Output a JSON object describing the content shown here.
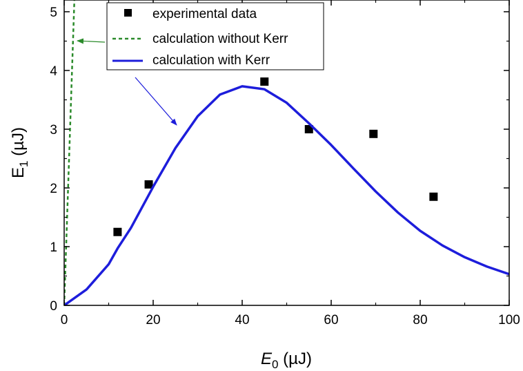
{
  "chart_data": {
    "type": "scatter",
    "xlabel": {
      "base": "E",
      "sub": "0",
      "unit": " (µJ)"
    },
    "ylabel": {
      "base": "E",
      "sub": "1",
      "unit": " (µJ)"
    },
    "xlim": [
      0,
      100
    ],
    "ylim": [
      0,
      5.2
    ],
    "xticks": [
      0,
      20,
      40,
      60,
      80,
      100
    ],
    "yticks": [
      0,
      1,
      2,
      3,
      4,
      5
    ],
    "xtick_labels": [
      "0",
      "20",
      "40",
      "60",
      "80",
      "100"
    ],
    "ytick_labels": [
      "0",
      "1",
      "2",
      "3",
      "4",
      "5"
    ],
    "grid": false,
    "legend_position": "top-center",
    "series": [
      {
        "name": "experimental data",
        "kind": "points",
        "color": "#000000",
        "x": [
          12,
          19,
          45,
          55,
          69.5,
          83
        ],
        "y": [
          1.25,
          2.06,
          3.81,
          3.0,
          2.92,
          1.85
        ]
      },
      {
        "name": "calculation without Kerr",
        "kind": "dashed-line",
        "color": "#2a8a2a",
        "x": [
          0,
          2.3
        ],
        "y": [
          0,
          5.2
        ]
      },
      {
        "name": "calculation with Kerr",
        "kind": "line",
        "color": "#1d1ddb",
        "x": [
          0,
          5,
          10,
          12,
          15,
          20,
          25,
          30,
          35,
          40,
          45,
          50,
          55,
          60,
          65,
          70,
          75,
          80,
          85,
          90,
          95,
          100
        ],
        "y": [
          0,
          0.27,
          0.7,
          0.97,
          1.32,
          2.02,
          2.68,
          3.22,
          3.59,
          3.73,
          3.68,
          3.45,
          3.1,
          2.73,
          2.33,
          1.94,
          1.58,
          1.27,
          1.02,
          0.82,
          0.66,
          0.53
        ]
      }
    ]
  }
}
